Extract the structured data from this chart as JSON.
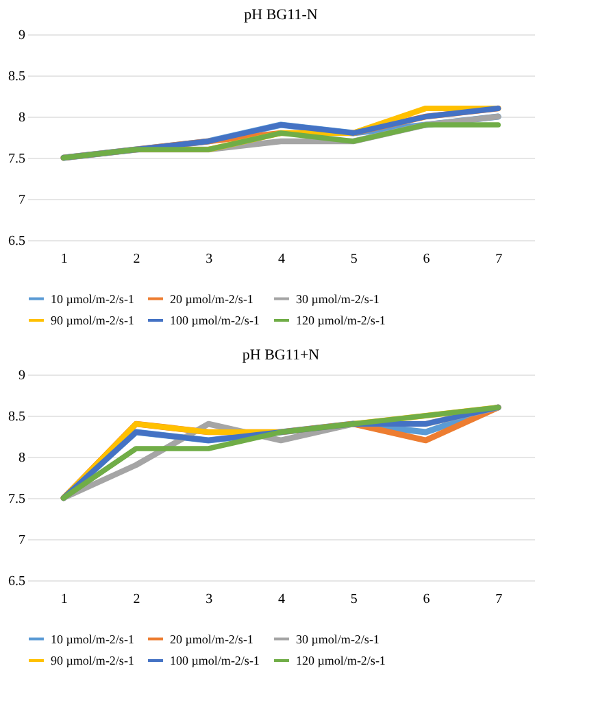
{
  "chart_data": [
    {
      "type": "line",
      "title": "pH BG11-N",
      "categories": [
        "1",
        "2",
        "3",
        "4",
        "5",
        "6",
        "7"
      ],
      "ylim": [
        6.5,
        9
      ],
      "yticks": [
        6.5,
        7,
        7.5,
        8,
        8.5,
        9
      ],
      "grid": "y",
      "legend": "bottom",
      "marker": "none",
      "series": [
        {
          "name": "10 µmol/m-2/s-1",
          "color": "#5b9bd5",
          "values": [
            7.5,
            7.6,
            7.7,
            7.9,
            7.8,
            7.9,
            8.0
          ]
        },
        {
          "name": "20 µmol/m-2/s-1",
          "color": "#ed7d31",
          "values": [
            7.5,
            7.6,
            7.7,
            7.8,
            7.8,
            8.0,
            8.1
          ]
        },
        {
          "name": "30 µmol/m-2/s-1",
          "color": "#a5a5a5",
          "values": [
            7.5,
            7.6,
            7.6,
            7.7,
            7.7,
            7.9,
            8.0
          ]
        },
        {
          "name": "90 µmol/m-2/s-1",
          "color": "#ffc000",
          "values": [
            7.5,
            7.6,
            7.6,
            7.8,
            7.8,
            8.1,
            8.1
          ]
        },
        {
          "name": "100 µmol/m-2/s-1",
          "color": "#4472c4",
          "values": [
            7.5,
            7.6,
            7.7,
            7.9,
            7.8,
            8.0,
            8.1
          ]
        },
        {
          "name": "120 µmol/m-2/s-1",
          "color": "#70ad47",
          "values": [
            7.5,
            7.6,
            7.6,
            7.8,
            7.7,
            7.9,
            7.9
          ]
        }
      ]
    },
    {
      "type": "line",
      "title": "pH BG11+N",
      "categories": [
        "1",
        "2",
        "3",
        "4",
        "5",
        "6",
        "7"
      ],
      "ylim": [
        6.5,
        9
      ],
      "yticks": [
        6.5,
        7,
        7.5,
        8,
        8.5,
        9
      ],
      "grid": "y",
      "legend": "bottom",
      "marker": "none",
      "series": [
        {
          "name": "10 µmol/m-2/s-1",
          "color": "#5b9bd5",
          "values": [
            7.5,
            8.3,
            8.2,
            8.3,
            8.4,
            8.3,
            8.6
          ]
        },
        {
          "name": "20 µmol/m-2/s-1",
          "color": "#ed7d31",
          "values": [
            7.5,
            8.4,
            8.3,
            8.3,
            8.4,
            8.2,
            8.6
          ]
        },
        {
          "name": "30 µmol/m-2/s-1",
          "color": "#a5a5a5",
          "values": [
            7.5,
            7.9,
            8.4,
            8.2,
            8.4,
            8.4,
            8.6
          ]
        },
        {
          "name": "90 µmol/m-2/s-1",
          "color": "#ffc000",
          "values": [
            7.5,
            8.4,
            8.3,
            8.3,
            8.4,
            8.5,
            8.6
          ]
        },
        {
          "name": "100 µmol/m-2/s-1",
          "color": "#4472c4",
          "values": [
            7.5,
            8.3,
            8.2,
            8.3,
            8.4,
            8.4,
            8.6
          ]
        },
        {
          "name": "120 µmol/m-2/s-1",
          "color": "#70ad47",
          "values": [
            7.5,
            8.1,
            8.1,
            8.3,
            8.4,
            8.5,
            8.6
          ]
        }
      ]
    }
  ]
}
